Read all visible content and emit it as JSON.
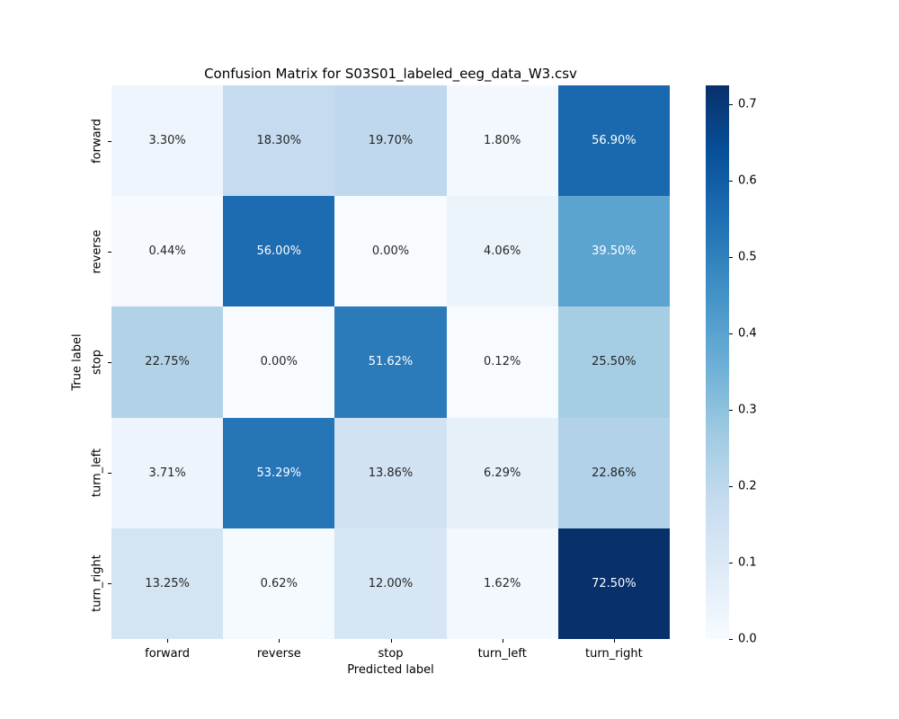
{
  "chart_data": {
    "type": "heatmap",
    "title": "Confusion Matrix for S03S01_labeled_eeg_data_W3.csv",
    "xlabel": "Predicted label",
    "ylabel": "True label",
    "x_categories": [
      "forward",
      "reverse",
      "stop",
      "turn_left",
      "turn_right"
    ],
    "y_categories": [
      "forward",
      "reverse",
      "stop",
      "turn_left",
      "turn_right"
    ],
    "values_percent": [
      [
        3.3,
        18.3,
        19.7,
        1.8,
        56.9
      ],
      [
        0.44,
        56.0,
        0.0,
        4.06,
        39.5
      ],
      [
        22.75,
        0.0,
        51.62,
        0.12,
        25.5
      ],
      [
        3.71,
        53.29,
        13.86,
        6.29,
        22.86
      ],
      [
        13.25,
        0.62,
        12.0,
        1.62,
        72.5
      ]
    ],
    "cell_labels": [
      [
        "3.30%",
        "18.30%",
        "19.70%",
        "1.80%",
        "56.90%"
      ],
      [
        "0.44%",
        "56.00%",
        "0.00%",
        "4.06%",
        "39.50%"
      ],
      [
        "22.75%",
        "0.00%",
        "51.62%",
        "0.12%",
        "25.50%"
      ],
      [
        "3.71%",
        "53.29%",
        "13.86%",
        "6.29%",
        "22.86%"
      ],
      [
        "13.25%",
        "0.62%",
        "12.00%",
        "1.62%",
        "72.50%"
      ]
    ],
    "colormap": "Blues",
    "colormap_stops": [
      "#f7fbff",
      "#deebf7",
      "#c6dbef",
      "#9ecae1",
      "#6baed6",
      "#4292c6",
      "#2171b5",
      "#08519c",
      "#08306b"
    ],
    "vmin": 0.0,
    "vmax": 0.725,
    "colorbar_ticks": [
      {
        "value": 0.0,
        "label": "0.0"
      },
      {
        "value": 0.1,
        "label": "0.1"
      },
      {
        "value": 0.2,
        "label": "0.2"
      },
      {
        "value": 0.3,
        "label": "0.3"
      },
      {
        "value": 0.4,
        "label": "0.4"
      },
      {
        "value": 0.5,
        "label": "0.5"
      },
      {
        "value": 0.6,
        "label": "0.6"
      },
      {
        "value": 0.7,
        "label": "0.7"
      }
    ],
    "legend_position": "right",
    "grid": false,
    "annotation_dark_color": "#262626",
    "annotation_light_color": "#ffffff",
    "background_color": "#ffffff"
  }
}
